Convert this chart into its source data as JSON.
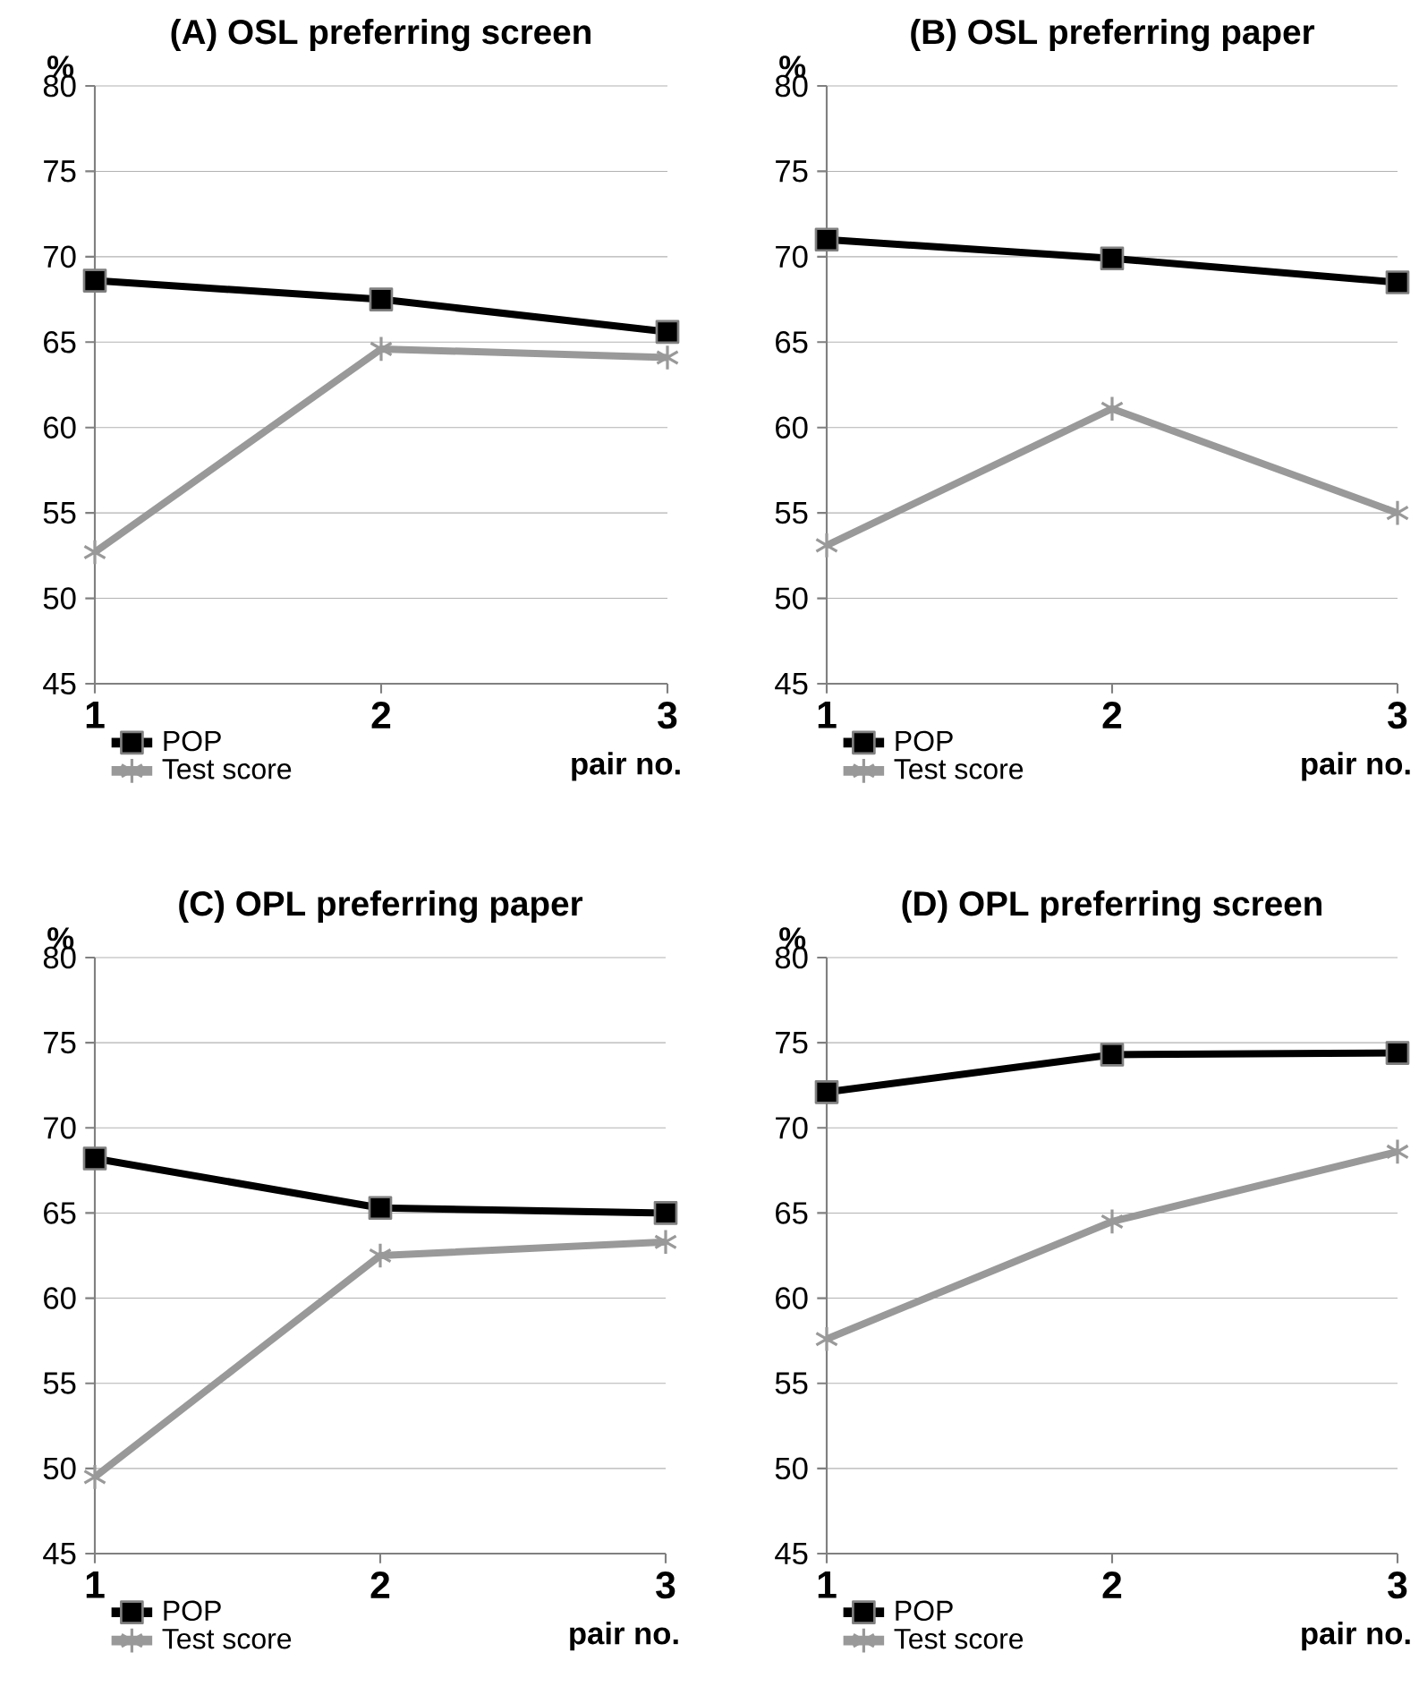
{
  "chart_data": [
    {
      "type": "line",
      "title": "(A) OSL preferring screen",
      "xlabel": "pair no.",
      "ylabel": "%",
      "x": [
        1,
        2,
        3
      ],
      "xlim": [
        1,
        3
      ],
      "xticks": [
        1,
        2,
        3
      ],
      "ylim": [
        45,
        80
      ],
      "yticks": [
        45,
        50,
        55,
        60,
        65,
        70,
        75,
        80
      ],
      "grid": "y",
      "legend": "bottom left",
      "series": [
        {
          "name": "POP",
          "color": "#000000",
          "marker": "square",
          "values": [
            68.6,
            67.5,
            65.6
          ]
        },
        {
          "name": "Test score",
          "color": "#999999",
          "marker": "cross",
          "values": [
            52.7,
            64.6,
            64.1
          ]
        }
      ]
    },
    {
      "type": "line",
      "title": "(B) OSL preferring paper",
      "xlabel": "pair no.",
      "ylabel": "%",
      "x": [
        1,
        2,
        3
      ],
      "xlim": [
        1,
        3
      ],
      "xticks": [
        1,
        2,
        3
      ],
      "ylim": [
        45,
        80
      ],
      "yticks": [
        45,
        50,
        55,
        60,
        65,
        70,
        75,
        80
      ],
      "grid": "y",
      "legend": "bottom left",
      "series": [
        {
          "name": "POP",
          "color": "#000000",
          "marker": "square",
          "values": [
            71.0,
            69.9,
            68.5
          ]
        },
        {
          "name": "Test score",
          "color": "#999999",
          "marker": "cross",
          "values": [
            53.1,
            61.1,
            55.0
          ]
        }
      ]
    },
    {
      "type": "line",
      "title": "(C) OPL preferring paper",
      "xlabel": "pair no.",
      "ylabel": "%",
      "x": [
        1,
        2,
        3
      ],
      "xlim": [
        1,
        3
      ],
      "xticks": [
        1,
        2,
        3
      ],
      "ylim": [
        45,
        80
      ],
      "yticks": [
        45,
        50,
        55,
        60,
        65,
        70,
        75,
        80
      ],
      "grid": "y",
      "legend": "bottom left",
      "series": [
        {
          "name": "POP",
          "color": "#000000",
          "marker": "square",
          "values": [
            68.2,
            65.3,
            65.0
          ]
        },
        {
          "name": "Test score",
          "color": "#999999",
          "marker": "cross",
          "values": [
            49.5,
            62.5,
            63.3
          ]
        }
      ]
    },
    {
      "type": "line",
      "title": "(D) OPL preferring screen",
      "xlabel": "pair no.",
      "ylabel": "%",
      "x": [
        1,
        2,
        3
      ],
      "xlim": [
        1,
        3
      ],
      "xticks": [
        1,
        2,
        3
      ],
      "ylim": [
        45,
        80
      ],
      "yticks": [
        45,
        50,
        55,
        60,
        65,
        70,
        75,
        80
      ],
      "grid": "y",
      "legend": "bottom left",
      "series": [
        {
          "name": "POP",
          "color": "#000000",
          "marker": "square",
          "values": [
            72.1,
            74.3,
            74.4
          ]
        },
        {
          "name": "Test score",
          "color": "#999999",
          "marker": "cross",
          "values": [
            57.6,
            64.5,
            68.6
          ]
        }
      ]
    }
  ]
}
